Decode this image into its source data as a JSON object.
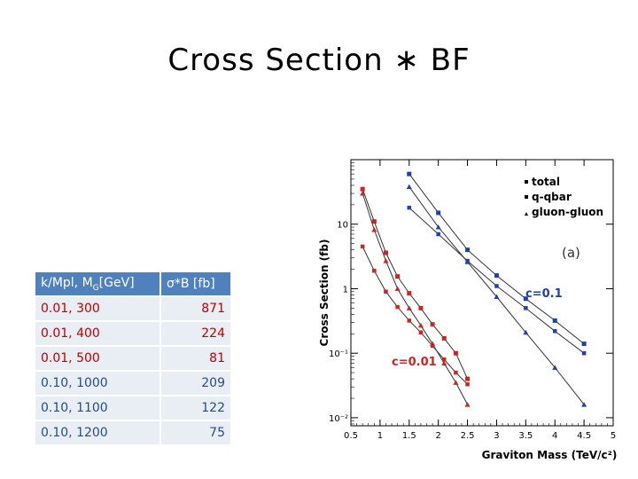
{
  "slide": {
    "title": "Cross Section ∗ BF"
  },
  "table": {
    "header": {
      "c1_main": "k/Mpl, M",
      "c1_sub": "G",
      "c1_tail": "[GeV]",
      "c2": "σ*B [fb]"
    },
    "rows": [
      {
        "label": "0.01, 300",
        "value": "871",
        "color": "red"
      },
      {
        "label": "0.01, 400",
        "value": "224",
        "color": "red"
      },
      {
        "label": "0.01, 500",
        "value": "81",
        "color": "red"
      },
      {
        "label": "0.10, 1000",
        "value": "209",
        "color": "blue"
      },
      {
        "label": "0.10, 1100",
        "value": "122",
        "color": "blue"
      },
      {
        "label": "0.10, 1200",
        "value": "75",
        "color": "blue"
      }
    ]
  },
  "chart_data": {
    "type": "scatter",
    "xlabel": "Graviton Mass (TeV/c²)",
    "ylabel": "Cross Section (fb)",
    "xlim": [
      0.5,
      5.0
    ],
    "ylim": [
      0.0075,
      100
    ],
    "yscale": "log",
    "xticks": [
      "0.5",
      "1",
      "1.5",
      "2",
      "2.5",
      "3",
      "3.5",
      "4",
      "4.5",
      "5"
    ],
    "yticks": [
      {
        "value": 0.01,
        "label": "10⁻²"
      },
      {
        "value": 0.1,
        "label": "10⁻¹"
      },
      {
        "value": 1,
        "label": "1"
      },
      {
        "value": 10,
        "label": "10"
      }
    ],
    "panel_label": "(a)",
    "legend": [
      "total",
      "q-qbar",
      "gluon-gluon"
    ],
    "legend_position": "top-right",
    "annotations": [
      {
        "text": "c=0.1",
        "color": "#1f3fb4"
      },
      {
        "text": "c=0.01",
        "color": "#d42020"
      }
    ],
    "colors": {
      "red": "#d42020",
      "blue": "#1f3fb4"
    },
    "series": [
      {
        "coupling": "c=0.01",
        "process": "total",
        "color": "red",
        "x": [
          0.7,
          0.9,
          1.1,
          1.3,
          1.5,
          1.7,
          1.9,
          2.1,
          2.3,
          2.5
        ],
        "y": [
          35,
          11,
          3.6,
          1.55,
          0.85,
          0.5,
          0.28,
          0.17,
          0.1,
          0.04
        ]
      },
      {
        "coupling": "c=0.01",
        "process": "q-qbar",
        "color": "red",
        "x": [
          0.7,
          0.9,
          1.1,
          1.3,
          1.5,
          1.7,
          1.9,
          2.1,
          2.3,
          2.5
        ],
        "y": [
          4.5,
          1.9,
          0.9,
          0.52,
          0.32,
          0.21,
          0.13,
          0.08,
          0.05,
          0.033
        ]
      },
      {
        "coupling": "c=0.01",
        "process": "gluon-gluon",
        "color": "red",
        "x": [
          0.7,
          0.9,
          1.1,
          1.3,
          1.5,
          1.7,
          1.9,
          2.1,
          2.3,
          2.5
        ],
        "y": [
          30,
          8.2,
          2.7,
          1.0,
          0.5,
          0.27,
          0.14,
          0.07,
          0.035,
          0.016
        ]
      },
      {
        "coupling": "c=0.1",
        "process": "total",
        "color": "blue",
        "x": [
          1.5,
          2.0,
          2.5,
          3.0,
          3.5,
          4.0,
          4.5
        ],
        "y": [
          60,
          15,
          4,
          1.6,
          0.7,
          0.32,
          0.14
        ]
      },
      {
        "coupling": "c=0.1",
        "process": "q-qbar",
        "color": "blue",
        "x": [
          1.5,
          2.0,
          2.5,
          3.0,
          3.5,
          4.0,
          4.5
        ],
        "y": [
          18,
          7,
          2.7,
          1.1,
          0.5,
          0.22,
          0.1
        ]
      },
      {
        "coupling": "c=0.1",
        "process": "gluon-gluon",
        "color": "blue",
        "x": [
          1.5,
          2.0,
          2.5,
          3.0,
          3.5,
          4.0,
          4.5
        ],
        "y": [
          38,
          9,
          2.6,
          0.75,
          0.21,
          0.06,
          0.016
        ]
      }
    ]
  }
}
